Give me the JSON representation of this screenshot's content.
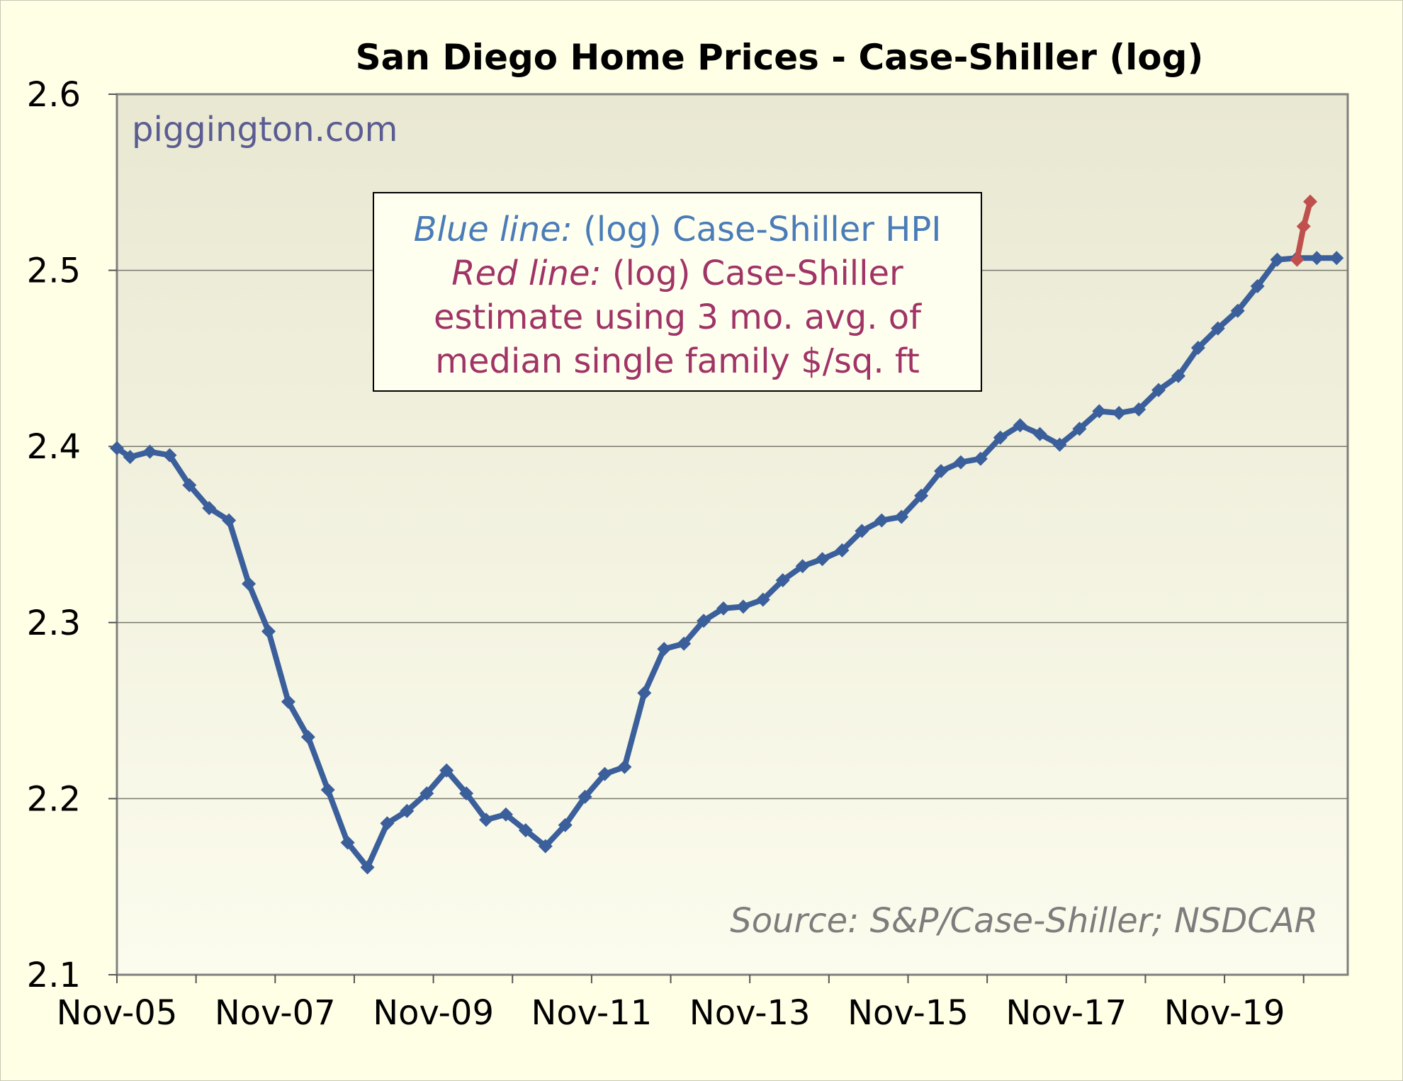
{
  "chart_data": {
    "type": "line",
    "title": "San Diego Home Prices - Case-Shiller (log)",
    "watermark": "piggington.com",
    "source": "Source: S&P/Case-Shiller; NSDCAR",
    "legend": {
      "blue_label": "Blue line:",
      "blue_text": "(log) Case-Shiller HPI",
      "red_label": "Red line:",
      "red_text_1": "(log) Case-Shiller",
      "red_text_2": "estimate using 3 mo. avg. of",
      "red_text_3": "median single family $/sq. ft"
    },
    "x_tick_labels": [
      "Nov-05",
      "Nov-07",
      "Nov-09",
      "Nov-11",
      "Nov-13",
      "Nov-15",
      "Nov-17",
      "Nov-19"
    ],
    "y_tick_labels": [
      "2.1",
      "2.2",
      "2.3",
      "2.4",
      "2.5",
      "2.6"
    ],
    "ylim": [
      2.1,
      2.6
    ],
    "grid": true,
    "colors": {
      "plot_bg_top": "#e9e8d2",
      "plot_bg_bottom": "#fcfcee",
      "blue": "#3b5f9b",
      "red": "#c0504d"
    },
    "series": [
      {
        "color": "#3b5f9b",
        "x": [
          "2005-11",
          "2006-01",
          "2006-04",
          "2006-07",
          "2006-10",
          "2007-01",
          "2007-04",
          "2007-07",
          "2007-10",
          "2008-01",
          "2008-04",
          "2008-07",
          "2008-10",
          "2009-01",
          "2009-04",
          "2009-07",
          "2009-10",
          "2010-01",
          "2010-04",
          "2010-07",
          "2010-10",
          "2011-01",
          "2011-04",
          "2011-07",
          "2011-10",
          "2012-01",
          "2012-04",
          "2012-07",
          "2012-10",
          "2013-01",
          "2013-04",
          "2013-07",
          "2013-10",
          "2014-01",
          "2014-04",
          "2014-07",
          "2014-10",
          "2015-01",
          "2015-04",
          "2015-07",
          "2015-10",
          "2016-01",
          "2016-04",
          "2016-07",
          "2016-10",
          "2017-01",
          "2017-04",
          "2017-07",
          "2017-10",
          "2018-01",
          "2018-04",
          "2018-07",
          "2018-10",
          "2019-01",
          "2019-04",
          "2019-07",
          "2019-10",
          "2020-01",
          "2020-04",
          "2020-07",
          "2020-10",
          "2021-01",
          "2021-04"
        ],
        "y": [
          2.399,
          2.394,
          2.397,
          2.395,
          2.378,
          2.365,
          2.358,
          2.322,
          2.295,
          2.255,
          2.235,
          2.205,
          2.175,
          2.161,
          2.186,
          2.193,
          2.203,
          2.216,
          2.203,
          2.188,
          2.191,
          2.182,
          2.173,
          2.185,
          2.201,
          2.214,
          2.218,
          2.26,
          2.285,
          2.288,
          2.301,
          2.308,
          2.309,
          2.313,
          2.324,
          2.332,
          2.336,
          2.341,
          2.352,
          2.358,
          2.36,
          2.372,
          2.386,
          2.391,
          2.393,
          2.405,
          2.412,
          2.407,
          2.401,
          2.41,
          2.42,
          2.419,
          2.421,
          2.432,
          2.44,
          2.456,
          2.467,
          2.477,
          2.491,
          2.506,
          2.507,
          2.507,
          2.507
        ]
      },
      {
        "color": "#c0504d",
        "x": [
          "2020-10",
          "2020-11",
          "2020-12"
        ],
        "y": [
          2.506,
          2.525,
          2.539
        ]
      }
    ]
  }
}
